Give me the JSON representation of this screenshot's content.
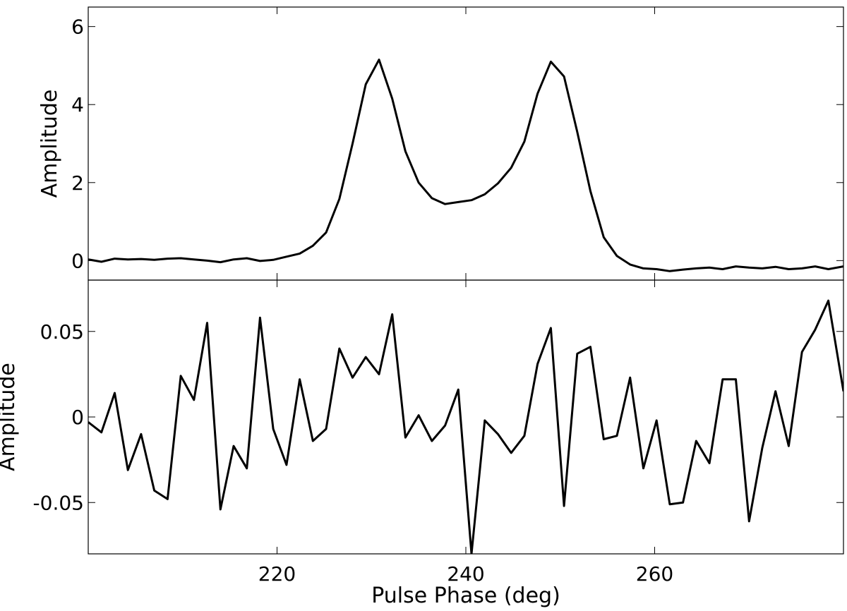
{
  "chart_data": [
    {
      "type": "line",
      "panel": "top",
      "title": "",
      "xlabel": "",
      "ylabel": "Amplitude",
      "xlim": [
        200,
        280
      ],
      "ylim": [
        -0.5,
        6.5
      ],
      "yticks": [
        0,
        2,
        4,
        6
      ],
      "ytick_labels": [
        "0",
        "2",
        "4",
        "6"
      ],
      "xticks": [
        220,
        240,
        260
      ],
      "show_x_tick_labels": false,
      "grid": false,
      "legend": "none",
      "line_color": "#000000",
      "x": [
        200.0,
        201.4,
        202.8,
        204.2,
        205.6,
        207.0,
        208.4,
        209.8,
        211.2,
        212.6,
        214.0,
        215.4,
        216.8,
        218.2,
        219.6,
        221.0,
        222.4,
        223.8,
        225.2,
        226.6,
        228.0,
        229.4,
        230.8,
        232.2,
        233.6,
        235.0,
        236.4,
        237.8,
        239.2,
        240.6,
        242.0,
        243.4,
        244.8,
        246.2,
        247.6,
        249.0,
        250.4,
        251.8,
        253.2,
        254.6,
        256.0,
        257.4,
        258.8,
        260.2,
        261.6,
        263.0,
        264.4,
        265.8,
        267.2,
        268.6,
        270.0,
        271.4,
        272.8,
        274.2,
        275.6,
        277.0,
        278.4,
        280.0
      ],
      "y": [
        0.03,
        -0.03,
        0.05,
        0.03,
        0.04,
        0.02,
        0.05,
        0.06,
        0.03,
        0.0,
        -0.04,
        0.03,
        0.06,
        -0.01,
        0.02,
        0.1,
        0.18,
        0.38,
        0.72,
        1.58,
        3.0,
        4.52,
        5.15,
        4.15,
        2.8,
        2.0,
        1.6,
        1.45,
        1.5,
        1.55,
        1.7,
        1.98,
        2.38,
        3.05,
        4.28,
        5.1,
        4.72,
        3.3,
        1.78,
        0.6,
        0.12,
        -0.1,
        -0.2,
        -0.22,
        -0.27,
        -0.23,
        -0.2,
        -0.18,
        -0.22,
        -0.15,
        -0.18,
        -0.2,
        -0.16,
        -0.22,
        -0.2,
        -0.15,
        -0.22,
        -0.15
      ]
    },
    {
      "type": "line",
      "panel": "bottom",
      "title": "",
      "xlabel": "Pulse Phase (deg)",
      "ylabel": "Amplitude",
      "xlim": [
        200,
        280
      ],
      "ylim": [
        -0.08,
        0.08
      ],
      "yticks": [
        -0.05,
        0,
        0.05
      ],
      "ytick_labels": [
        "-0.05",
        "0",
        "0.05"
      ],
      "xticks": [
        220,
        240,
        260
      ],
      "xtick_labels": [
        "220",
        "240",
        "260"
      ],
      "grid": false,
      "legend": "none",
      "line_color": "#000000",
      "x": [
        200.0,
        201.4,
        202.8,
        204.2,
        205.6,
        207.0,
        208.4,
        209.8,
        211.2,
        212.6,
        214.0,
        215.4,
        216.8,
        218.2,
        219.6,
        221.0,
        222.4,
        223.8,
        225.2,
        226.6,
        228.0,
        229.4,
        230.8,
        232.2,
        233.6,
        235.0,
        236.4,
        237.8,
        239.2,
        240.6,
        242.0,
        243.4,
        244.8,
        246.2,
        247.6,
        249.0,
        250.4,
        251.8,
        253.2,
        254.6,
        256.0,
        257.4,
        258.8,
        260.2,
        261.6,
        263.0,
        264.4,
        265.8,
        267.2,
        268.6,
        270.0,
        271.4,
        272.8,
        274.2,
        275.6,
        277.0,
        278.4,
        280.0
      ],
      "y": [
        -0.003,
        -0.009,
        0.014,
        -0.031,
        -0.01,
        -0.043,
        -0.048,
        0.024,
        0.01,
        0.055,
        -0.054,
        -0.017,
        -0.03,
        0.058,
        -0.007,
        -0.028,
        0.022,
        -0.014,
        -0.007,
        0.04,
        0.023,
        0.035,
        0.025,
        0.06,
        -0.012,
        0.001,
        -0.014,
        -0.005,
        0.016,
        -0.08,
        -0.002,
        -0.01,
        -0.021,
        -0.011,
        0.031,
        0.052,
        -0.052,
        0.037,
        0.041,
        -0.013,
        -0.011,
        0.023,
        -0.03,
        -0.002,
        -0.051,
        -0.05,
        -0.014,
        -0.027,
        0.022,
        0.022,
        -0.061,
        -0.018,
        0.015,
        -0.017,
        0.038,
        0.051,
        0.068,
        0.015
      ]
    }
  ]
}
